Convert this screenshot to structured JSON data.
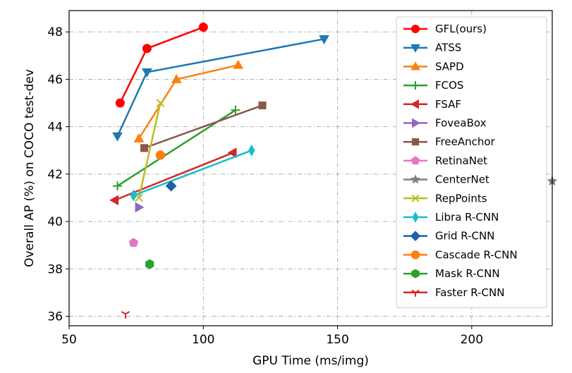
{
  "chart_data": {
    "type": "line",
    "title": "",
    "xlabel": "GPU Time (ms/img)",
    "ylabel": "Overall AP (%) on COCO test-dev",
    "xlim": [
      50,
      230
    ],
    "ylim": [
      35.6,
      48.9
    ],
    "xticks": [
      "50",
      "100",
      "150",
      "200"
    ],
    "yticks": [
      "36",
      "38",
      "40",
      "42",
      "44",
      "46",
      "48"
    ],
    "grid": true,
    "legend_position": "right",
    "series": [
      {
        "name": "GFL(ours)",
        "color": "#ff0000",
        "marker": "circle",
        "x": [
          69,
          79,
          100
        ],
        "y": [
          45.0,
          47.3,
          48.2
        ]
      },
      {
        "name": "ATSS",
        "color": "#1f77b4",
        "marker": "triangle-down",
        "x": [
          68,
          79,
          145
        ],
        "y": [
          43.6,
          46.3,
          47.7
        ]
      },
      {
        "name": "SAPD",
        "color": "#ff7f0e",
        "marker": "triangle-up",
        "x": [
          76,
          90,
          113
        ],
        "y": [
          43.5,
          46.0,
          46.6
        ]
      },
      {
        "name": "FCOS",
        "color": "#2ca02c",
        "marker": "plus",
        "x": [
          68,
          112
        ],
        "y": [
          41.5,
          44.7
        ]
      },
      {
        "name": "FSAF",
        "color": "#d62728",
        "marker": "triangle-left",
        "x": [
          67,
          111
        ],
        "y": [
          40.9,
          42.9
        ]
      },
      {
        "name": "FoveaBox",
        "color": "#9467bd",
        "marker": "triangle-right",
        "x": [
          76
        ],
        "y": [
          40.6
        ]
      },
      {
        "name": "FreeAnchor",
        "color": "#8c564b",
        "marker": "square",
        "x": [
          78,
          122
        ],
        "y": [
          43.1,
          44.9
        ]
      },
      {
        "name": "RetinaNet",
        "color": "#e377c2",
        "marker": "pentagon",
        "x": [
          74
        ],
        "y": [
          39.1
        ]
      },
      {
        "name": "CenterNet",
        "color": "#7f7f7f",
        "marker": "star",
        "x": [
          230
        ],
        "y": [
          41.7
        ]
      },
      {
        "name": "RepPoints",
        "color": "#bcbd22",
        "marker": "x",
        "x": [
          76,
          84
        ],
        "y": [
          41.0,
          45.0
        ]
      },
      {
        "name": "Libra R-CNN",
        "color": "#17becf",
        "marker": "thin-diamond",
        "x": [
          74,
          118
        ],
        "y": [
          41.1,
          43.0
        ]
      },
      {
        "name": "Grid R-CNN",
        "color": "#1f5fa8",
        "marker": "diamond",
        "x": [
          88
        ],
        "y": [
          41.5
        ]
      },
      {
        "name": "Cascade R-CNN",
        "color": "#ff7f0e",
        "marker": "octagon",
        "x": [
          84
        ],
        "y": [
          42.8
        ]
      },
      {
        "name": "Mask R-CNN",
        "color": "#2ca02c",
        "marker": "hexagon",
        "x": [
          80
        ],
        "y": [
          38.2
        ]
      },
      {
        "name": "Faster R-CNN",
        "color": "#d62728",
        "marker": "tri-down",
        "x": [
          71
        ],
        "y": [
          36.1
        ]
      }
    ]
  }
}
